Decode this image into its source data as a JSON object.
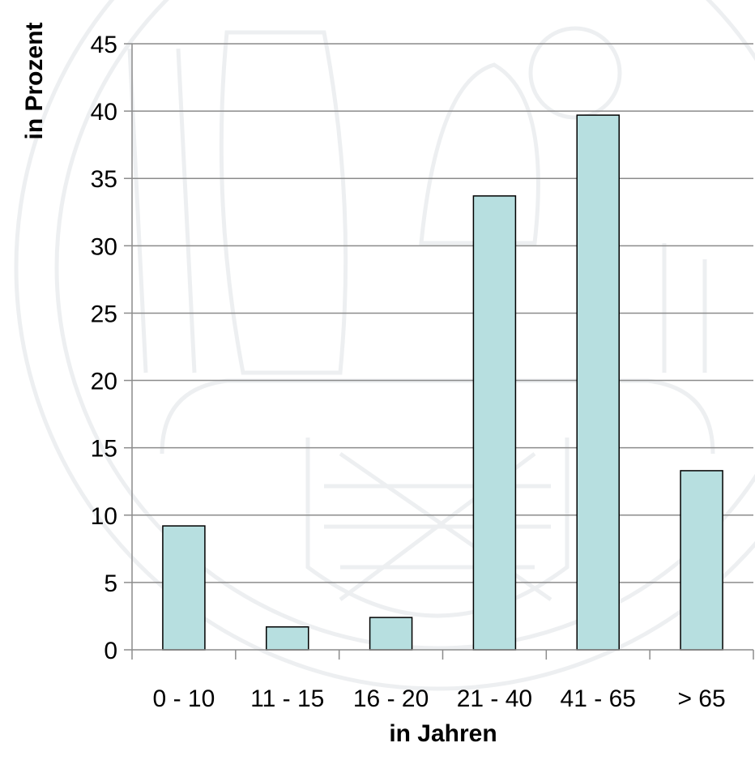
{
  "chart_data": {
    "type": "bar",
    "categories": [
      "0 - 10",
      "11 - 15",
      "16 - 20",
      "21 - 40",
      "41 - 65",
      "> 65"
    ],
    "values": [
      9.2,
      1.7,
      2.4,
      33.7,
      39.7,
      13.3
    ],
    "xlabel": "in Jahren",
    "ylabel": "in Prozent",
    "ylim": [
      0,
      45
    ],
    "yticks": [
      0,
      5,
      10,
      15,
      20,
      25,
      30,
      35,
      40,
      45
    ],
    "grid": true,
    "legend": "none",
    "colors": {
      "bar_fill": "#b7dfe0",
      "bar_stroke": "#000000",
      "grid": "#8c8c8c",
      "axis": "#8c8c8c",
      "watermark": "#7a8c99"
    }
  }
}
